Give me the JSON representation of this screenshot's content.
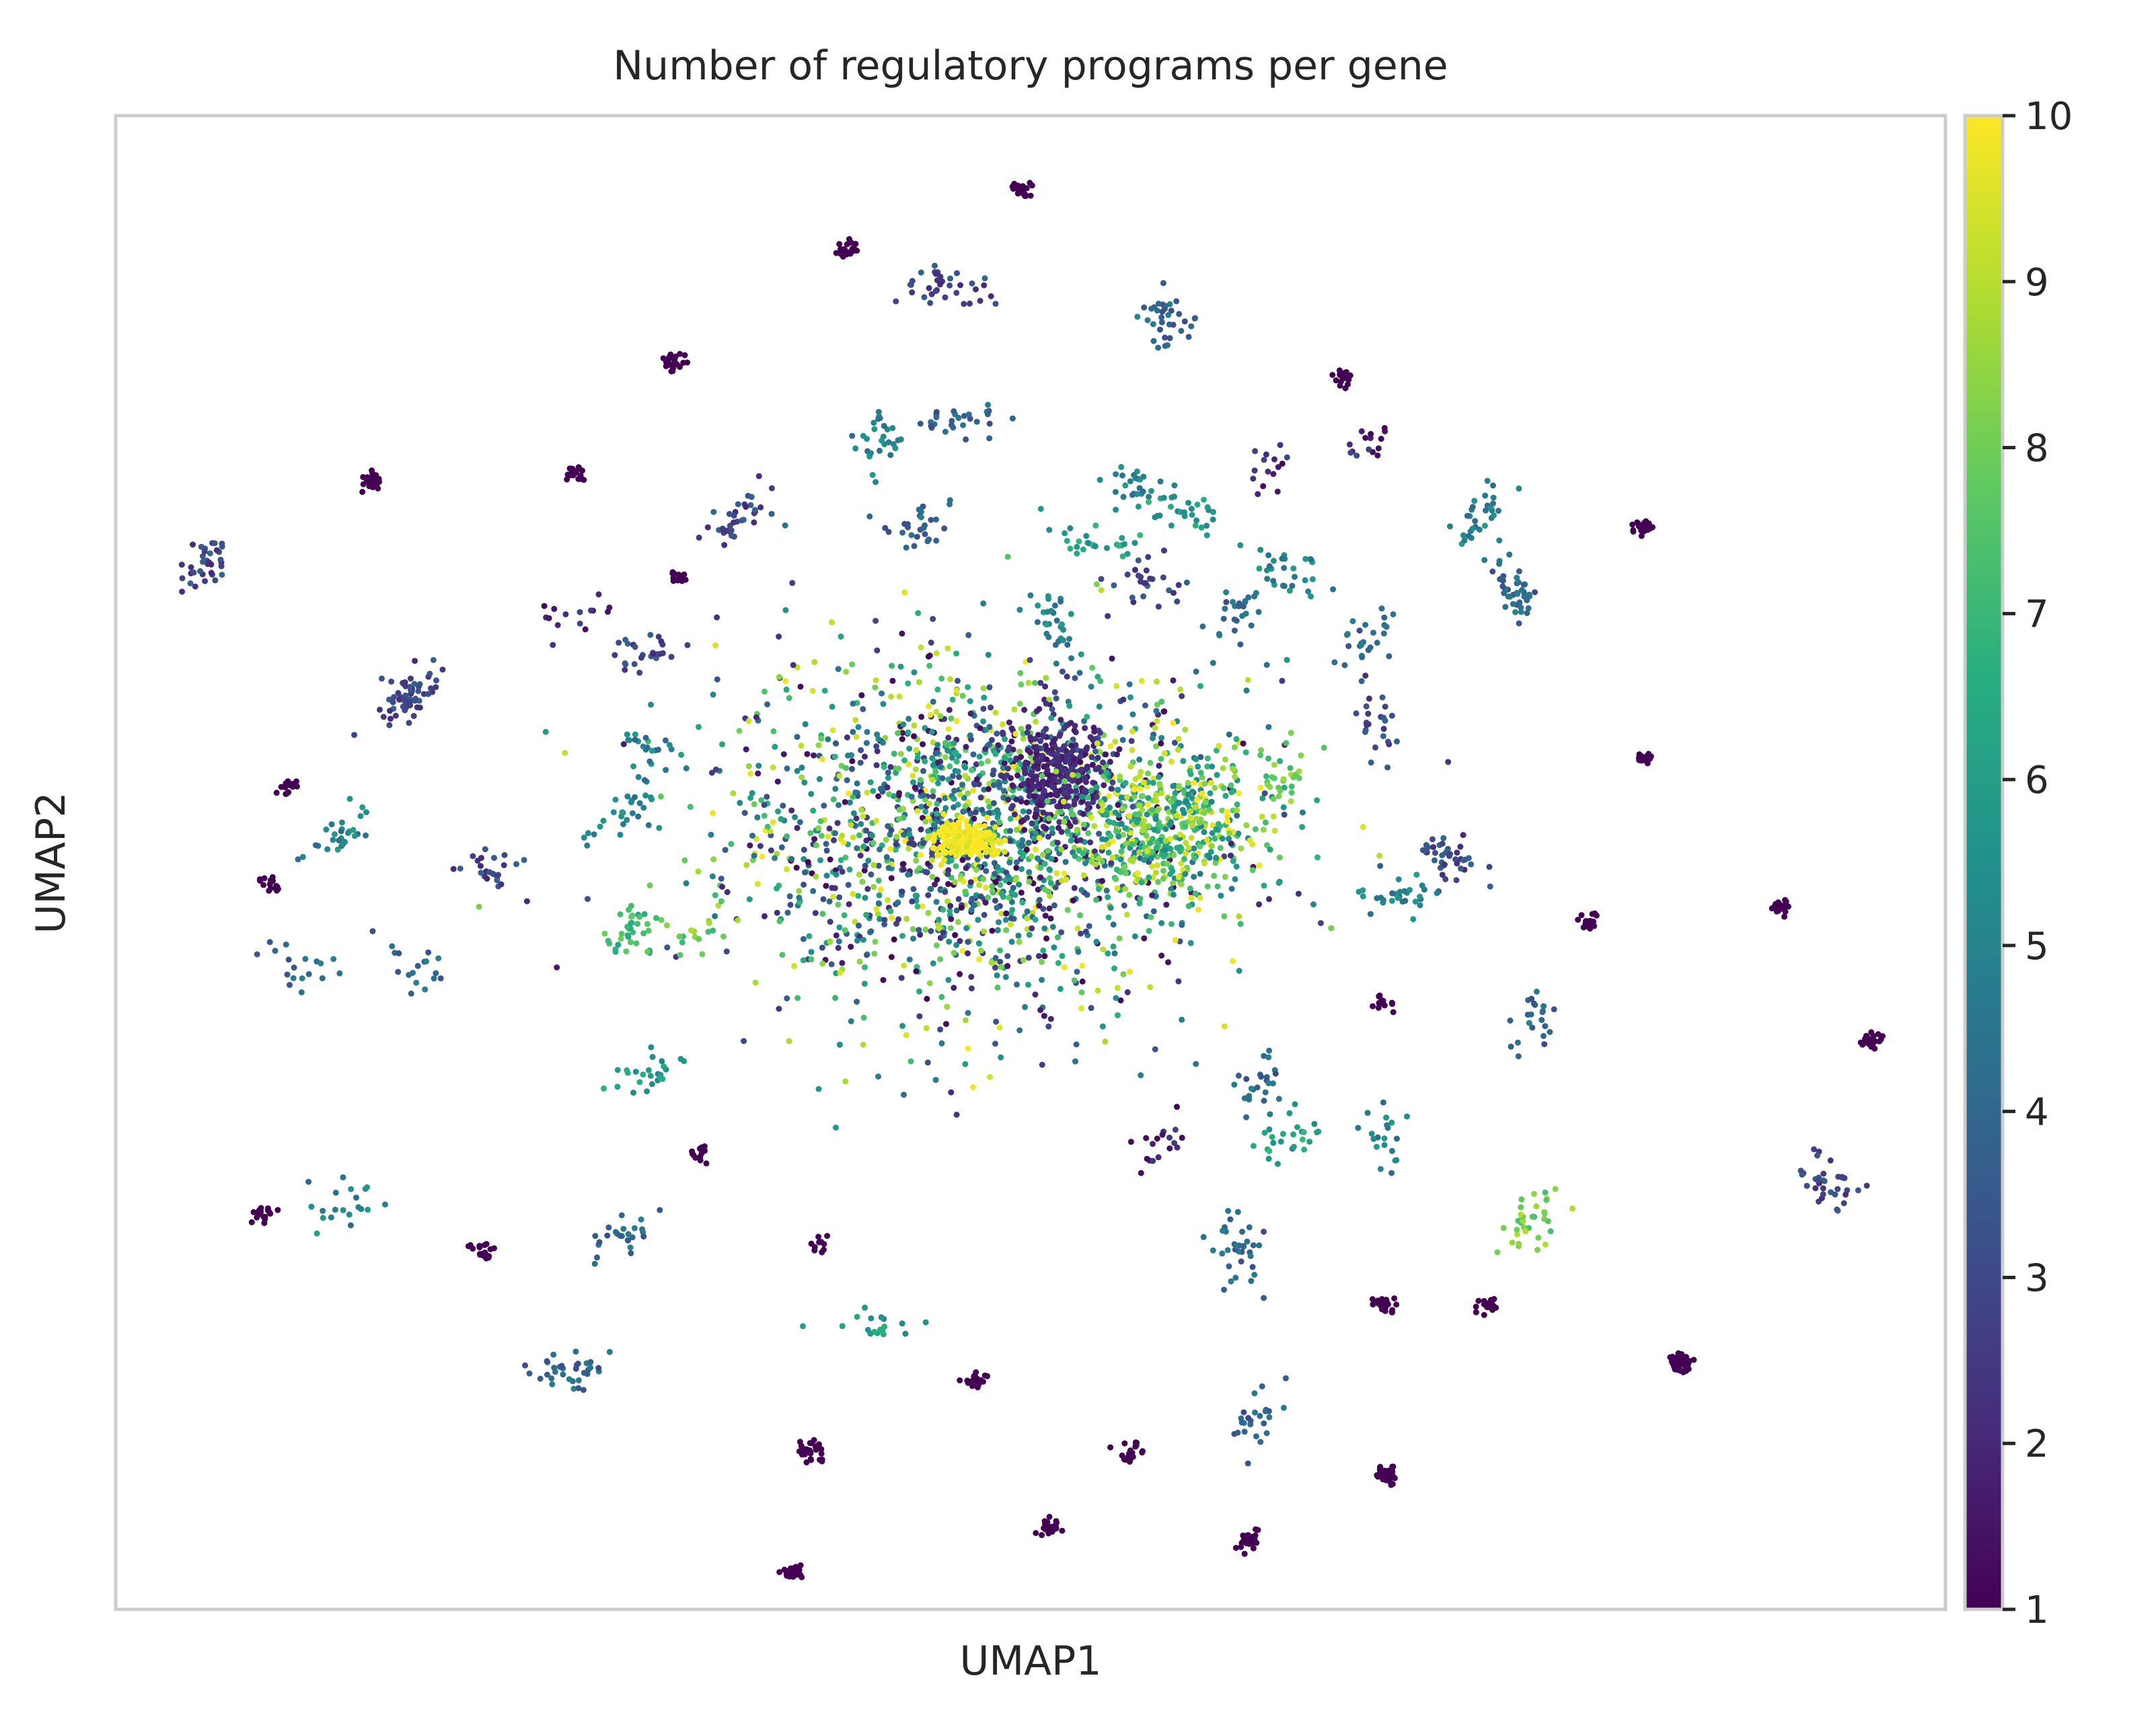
{
  "chart_data": {
    "type": "scatter",
    "title": "Number of regulatory programs per gene",
    "xlabel": "UMAP1",
    "ylabel": "UMAP2",
    "xlim": [
      -10,
      10
    ],
    "ylim": [
      -10,
      10
    ],
    "grid": false,
    "colormap": "viridis",
    "colorbar": {
      "range": [
        1,
        10
      ],
      "ticks": [
        "1",
        "2",
        "3",
        "4",
        "5",
        "6",
        "7",
        "8",
        "9",
        "10"
      ]
    },
    "clusters": [
      {
        "x": -0.1,
        "y": 9.0,
        "value": 1,
        "n": 25
      },
      {
        "x": -2.0,
        "y": 8.2,
        "value": 1,
        "n": 25
      },
      {
        "x": -0.95,
        "y": 7.7,
        "value": 3,
        "n": 35
      },
      {
        "x": 1.5,
        "y": 7.3,
        "value": 4,
        "n": 35
      },
      {
        "x": -3.9,
        "y": 6.7,
        "value": 1,
        "n": 25
      },
      {
        "x": 3.4,
        "y": 6.5,
        "value": 1,
        "n": 18
      },
      {
        "x": -1.7,
        "y": 5.7,
        "value": 5,
        "n": 28
      },
      {
        "x": -0.75,
        "y": 5.9,
        "value": 4,
        "n": 28
      },
      {
        "x": 3.7,
        "y": 5.6,
        "value": 2,
        "n": 15
      },
      {
        "x": 2.6,
        "y": 5.2,
        "value": 2,
        "n": 15
      },
      {
        "x": 1.2,
        "y": 5.0,
        "value": 5,
        "n": 30
      },
      {
        "x": 1.7,
        "y": 4.7,
        "value": 6,
        "n": 25
      },
      {
        "x": 4.9,
        "y": 4.6,
        "value": 5,
        "n": 30
      },
      {
        "x": -7.2,
        "y": 5.1,
        "value": 1,
        "n": 25
      },
      {
        "x": -5.0,
        "y": 5.2,
        "value": 1,
        "n": 18
      },
      {
        "x": -3.2,
        "y": 4.6,
        "value": 3,
        "n": 35
      },
      {
        "x": -1.3,
        "y": 4.5,
        "value": 4,
        "n": 28
      },
      {
        "x": 0.7,
        "y": 4.3,
        "value": 6,
        "n": 25
      },
      {
        "x": 6.7,
        "y": 4.5,
        "value": 1,
        "n": 25
      },
      {
        "x": -9.0,
        "y": 4.0,
        "value": 3,
        "n": 35
      },
      {
        "x": -3.8,
        "y": 3.8,
        "value": 1,
        "n": 12
      },
      {
        "x": 1.3,
        "y": 3.8,
        "value": 3,
        "n": 25
      },
      {
        "x": 2.8,
        "y": 3.9,
        "value": 5,
        "n": 30
      },
      {
        "x": 5.3,
        "y": 3.6,
        "value": 4,
        "n": 45
      },
      {
        "x": -4.9,
        "y": 3.3,
        "value": 2,
        "n": 15
      },
      {
        "x": 3.7,
        "y": 3.0,
        "value": 4,
        "n": 25
      },
      {
        "x": 0.2,
        "y": 3.3,
        "value": 5,
        "n": 28
      },
      {
        "x": 2.3,
        "y": 3.4,
        "value": 4,
        "n": 25
      },
      {
        "x": 3.8,
        "y": 1.9,
        "value": 3,
        "n": 25
      },
      {
        "x": -6.8,
        "y": 2.3,
        "value": 3,
        "n": 60
      },
      {
        "x": -4.2,
        "y": 2.8,
        "value": 3,
        "n": 25
      },
      {
        "x": 6.7,
        "y": 1.4,
        "value": 1,
        "n": 18
      },
      {
        "x": -8.1,
        "y": 1.0,
        "value": 1,
        "n": 15
      },
      {
        "x": -7.5,
        "y": 0.4,
        "value": 5,
        "n": 28
      },
      {
        "x": -4.2,
        "y": 1.5,
        "value": 5,
        "n": 25
      },
      {
        "x": 2.8,
        "y": 1.2,
        "value": 8,
        "n": 25
      },
      {
        "x": -4.5,
        "y": 0.6,
        "value": 5,
        "n": 25
      },
      {
        "x": -5.9,
        "y": -0.1,
        "value": 3,
        "n": 25
      },
      {
        "x": -8.3,
        "y": -0.3,
        "value": 1,
        "n": 15
      },
      {
        "x": 4.6,
        "y": 0.1,
        "value": 3,
        "n": 40
      },
      {
        "x": 4.1,
        "y": -0.4,
        "value": 5,
        "n": 30
      },
      {
        "x": 6.1,
        "y": -0.8,
        "value": 1,
        "n": 20
      },
      {
        "x": 8.2,
        "y": -0.6,
        "value": 1,
        "n": 25
      },
      {
        "x": -4.3,
        "y": -0.9,
        "value": 7,
        "n": 35
      },
      {
        "x": -3.6,
        "y": -0.9,
        "value": 8,
        "n": 18
      },
      {
        "x": -8.0,
        "y": -1.4,
        "value": 4,
        "n": 18
      },
      {
        "x": -6.8,
        "y": -1.4,
        "value": 4,
        "n": 18
      },
      {
        "x": 3.9,
        "y": -1.9,
        "value": 1,
        "n": 12
      },
      {
        "x": 5.5,
        "y": -2.1,
        "value": 4,
        "n": 22
      },
      {
        "x": 9.2,
        "y": -2.4,
        "value": 1,
        "n": 25
      },
      {
        "x": -4.2,
        "y": -2.8,
        "value": 6,
        "n": 25
      },
      {
        "x": 2.5,
        "y": -2.9,
        "value": 4,
        "n": 25
      },
      {
        "x": -3.6,
        "y": -3.9,
        "value": 1,
        "n": 12
      },
      {
        "x": 1.4,
        "y": -3.8,
        "value": 2,
        "n": 18
      },
      {
        "x": 2.8,
        "y": -3.7,
        "value": 6,
        "n": 25
      },
      {
        "x": 3.9,
        "y": -3.8,
        "value": 5,
        "n": 20
      },
      {
        "x": -8.4,
        "y": -4.7,
        "value": 1,
        "n": 18
      },
      {
        "x": -7.5,
        "y": -4.6,
        "value": 5,
        "n": 20
      },
      {
        "x": -4.5,
        "y": -5.0,
        "value": 4,
        "n": 25
      },
      {
        "x": -6.0,
        "y": -5.2,
        "value": 1,
        "n": 20
      },
      {
        "x": -2.3,
        "y": -5.1,
        "value": 1,
        "n": 10
      },
      {
        "x": 5.5,
        "y": -4.8,
        "value": 8,
        "n": 35
      },
      {
        "x": 2.3,
        "y": -5.2,
        "value": 4,
        "n": 35
      },
      {
        "x": 8.7,
        "y": -4.3,
        "value": 3,
        "n": 35
      },
      {
        "x": 3.9,
        "y": -5.9,
        "value": 1,
        "n": 25
      },
      {
        "x": 5.0,
        "y": -5.9,
        "value": 1,
        "n": 20
      },
      {
        "x": -1.7,
        "y": -6.2,
        "value": 6,
        "n": 18
      },
      {
        "x": -5.0,
        "y": -6.8,
        "value": 4,
        "n": 35
      },
      {
        "x": -0.6,
        "y": -6.9,
        "value": 1,
        "n": 20
      },
      {
        "x": 7.1,
        "y": -6.7,
        "value": 1,
        "n": 50
      },
      {
        "x": 2.5,
        "y": -7.4,
        "value": 4,
        "n": 25
      },
      {
        "x": -2.4,
        "y": -7.9,
        "value": 1,
        "n": 30
      },
      {
        "x": 1.1,
        "y": -7.9,
        "value": 1,
        "n": 25
      },
      {
        "x": 3.9,
        "y": -8.2,
        "value": 1,
        "n": 45
      },
      {
        "x": 0.2,
        "y": -8.9,
        "value": 1,
        "n": 25
      },
      {
        "x": 2.4,
        "y": -9.1,
        "value": 1,
        "n": 25
      },
      {
        "x": -2.6,
        "y": -9.5,
        "value": 1,
        "n": 30
      }
    ],
    "core": [
      {
        "x": -0.6,
        "y": 0.4,
        "spread_x": 3.0,
        "spread_y": 2.6,
        "n": 1800,
        "value_mix": [
          1,
          10
        ]
      },
      {
        "x": 0.3,
        "y": 1.2,
        "spread_x": 0.6,
        "spread_y": 0.8,
        "n": 320,
        "value": 2
      },
      {
        "x": -0.7,
        "y": 0.3,
        "spread_x": 0.4,
        "spread_y": 0.25,
        "n": 220,
        "value": 10
      },
      {
        "x": 1.5,
        "y": 0.5,
        "spread_x": 1.2,
        "spread_y": 1.0,
        "n": 450,
        "value_mix": [
          5,
          10
        ]
      }
    ]
  }
}
